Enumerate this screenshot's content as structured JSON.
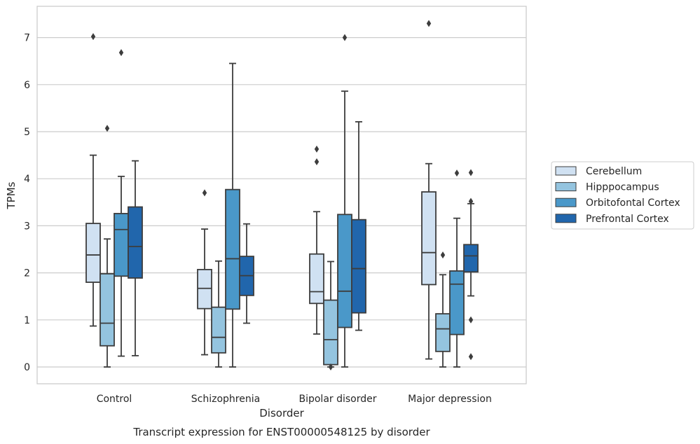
{
  "chart_data": {
    "type": "box",
    "caption": "Transcript expression for ENST00000548125 by disorder",
    "xlabel": "Disorder",
    "ylabel": "TPMs",
    "ylim": [
      -0.35,
      7.7
    ],
    "yticks": [
      "0",
      "1",
      "2",
      "3",
      "4",
      "5",
      "6",
      "7"
    ],
    "grid": true,
    "legend_position": "right",
    "categories": [
      "Control",
      "Schizophrenia",
      "Bipolar disorder",
      "Major depression"
    ],
    "series": [
      {
        "name": "Cerebellum",
        "color": "#d0e1f2",
        "boxes": [
          {
            "q1": 1.8,
            "median": 2.38,
            "q3": 3.05,
            "whislo": 0.87,
            "whishi": 4.5,
            "fliers": [
              7.02
            ]
          },
          {
            "q1": 1.24,
            "median": 1.67,
            "q3": 2.07,
            "whislo": 0.26,
            "whishi": 2.93,
            "fliers": [
              3.7
            ]
          },
          {
            "q1": 1.35,
            "median": 1.6,
            "q3": 2.4,
            "whislo": 0.7,
            "whishi": 3.3,
            "fliers": [
              4.36,
              4.63
            ]
          },
          {
            "q1": 1.75,
            "median": 2.43,
            "q3": 3.72,
            "whislo": 0.17,
            "whishi": 4.32,
            "fliers": [
              7.3
            ]
          }
        ]
      },
      {
        "name": "Hipppocampus",
        "color": "#94c4df",
        "boxes": [
          {
            "q1": 0.45,
            "median": 0.93,
            "q3": 1.98,
            "whislo": 0.0,
            "whishi": 2.72,
            "fliers": [
              5.07
            ]
          },
          {
            "q1": 0.3,
            "median": 0.63,
            "q3": 1.27,
            "whislo": 0.0,
            "whishi": 2.25,
            "fliers": []
          },
          {
            "q1": 0.05,
            "median": 0.58,
            "q3": 1.42,
            "whislo": 0.0,
            "whishi": 2.24,
            "fliers": [
              0.0
            ]
          },
          {
            "q1": 0.33,
            "median": 0.81,
            "q3": 1.13,
            "whislo": 0.0,
            "whishi": 1.96,
            "fliers": [
              2.38
            ]
          }
        ]
      },
      {
        "name": "Orbitofontal Cortex",
        "color": "#4a98c9",
        "boxes": [
          {
            "q1": 1.93,
            "median": 2.92,
            "q3": 3.26,
            "whislo": 0.23,
            "whishi": 4.05,
            "fliers": [
              6.68
            ]
          },
          {
            "q1": 1.23,
            "median": 2.3,
            "q3": 3.77,
            "whislo": 0.0,
            "whishi": 6.45,
            "fliers": []
          },
          {
            "q1": 0.84,
            "median": 1.61,
            "q3": 3.24,
            "whislo": 0.0,
            "whishi": 5.86,
            "fliers": [
              7.0
            ]
          },
          {
            "q1": 0.69,
            "median": 1.76,
            "q3": 2.04,
            "whislo": 0.0,
            "whishi": 3.16,
            "fliers": [
              4.12
            ]
          }
        ]
      },
      {
        "name": "Prefrontal Cortex",
        "color": "#2166ac",
        "boxes": [
          {
            "q1": 1.89,
            "median": 2.56,
            "q3": 3.4,
            "whislo": 0.24,
            "whishi": 4.38,
            "fliers": []
          },
          {
            "q1": 1.52,
            "median": 1.94,
            "q3": 2.35,
            "whislo": 0.93,
            "whishi": 3.04,
            "fliers": []
          },
          {
            "q1": 1.15,
            "median": 2.09,
            "q3": 3.13,
            "whislo": 0.78,
            "whishi": 5.21,
            "fliers": []
          },
          {
            "q1": 2.02,
            "median": 2.36,
            "q3": 2.6,
            "whislo": 1.51,
            "whishi": 3.47,
            "fliers": [
              0.22,
              1.0,
              3.52,
              4.13
            ]
          }
        ]
      }
    ]
  }
}
